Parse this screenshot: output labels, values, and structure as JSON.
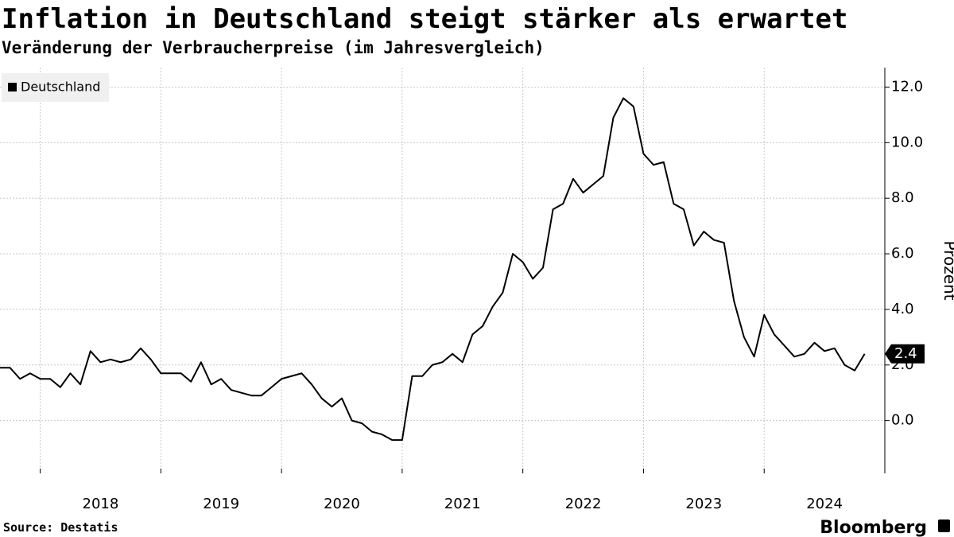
{
  "chart_data": {
    "type": "line",
    "title": "Inflation in Deutschland steigt stärker als erwartet",
    "subtitle": "Veränderung der Verbraucherpreise (im Jahresvergleich)",
    "y_label": "Prozent",
    "source": "Source: Destatis",
    "brand": "Bloomberg",
    "legend_position": "top-left",
    "grid": true,
    "x": [
      2017.667,
      2017.75,
      2017.833,
      2017.917,
      2018,
      2018.083,
      2018.167,
      2018.25,
      2018.333,
      2018.417,
      2018.5,
      2018.583,
      2018.667,
      2018.75,
      2018.833,
      2018.917,
      2019,
      2019.083,
      2019.167,
      2019.25,
      2019.333,
      2019.417,
      2019.5,
      2019.583,
      2019.667,
      2019.75,
      2019.833,
      2019.917,
      2020,
      2020.083,
      2020.167,
      2020.25,
      2020.333,
      2020.417,
      2020.5,
      2020.583,
      2020.667,
      2020.75,
      2020.833,
      2020.917,
      2021,
      2021.083,
      2021.167,
      2021.25,
      2021.333,
      2021.417,
      2021.5,
      2021.583,
      2021.667,
      2021.75,
      2021.833,
      2021.917,
      2022,
      2022.083,
      2022.167,
      2022.25,
      2022.333,
      2022.417,
      2022.5,
      2022.583,
      2022.667,
      2022.75,
      2022.833,
      2022.917,
      2023,
      2023.083,
      2023.167,
      2023.25,
      2023.333,
      2023.417,
      2023.5,
      2023.583,
      2023.667,
      2023.75,
      2023.833,
      2023.917,
      2024,
      2024.083,
      2024.167,
      2024.25,
      2024.333,
      2024.417,
      2024.5,
      2024.583,
      2024.667,
      2024.75,
      2024.833
    ],
    "series": [
      {
        "name": "Deutschland",
        "color": "#000000",
        "values": [
          1.9,
          1.9,
          1.5,
          1.7,
          1.5,
          1.5,
          1.2,
          1.7,
          1.3,
          2.5,
          2.1,
          2.2,
          2.1,
          2.2,
          2.6,
          2.2,
          1.7,
          1.7,
          1.7,
          1.4,
          2.1,
          1.3,
          1.5,
          1.1,
          1.0,
          0.9,
          0.9,
          1.2,
          1.5,
          1.6,
          1.7,
          1.3,
          0.8,
          0.5,
          0.8,
          0.0,
          -0.1,
          -0.4,
          -0.5,
          -0.7,
          -0.7,
          1.6,
          1.6,
          2.0,
          2.1,
          2.4,
          2.1,
          3.1,
          3.4,
          4.1,
          4.6,
          6.0,
          5.7,
          5.1,
          5.5,
          7.6,
          7.8,
          8.7,
          8.2,
          8.5,
          8.8,
          10.9,
          11.6,
          11.3,
          9.6,
          9.2,
          9.3,
          7.8,
          7.6,
          6.3,
          6.8,
          6.5,
          6.4,
          4.3,
          3.0,
          2.3,
          3.8,
          3.1,
          2.7,
          2.3,
          2.4,
          2.8,
          2.5,
          2.6,
          2.0,
          1.8,
          2.4
        ]
      }
    ],
    "xlim": [
      2017.667,
      2025.0
    ],
    "xticks": [
      2018,
      2019,
      2020,
      2021,
      2022,
      2023,
      2024
    ],
    "ylim": [
      -1.9,
      12.7
    ],
    "yticks": [
      {
        "value": 0,
        "label": "0.0"
      },
      {
        "value": 2,
        "label": "2.0"
      },
      {
        "value": 4,
        "label": "4.0"
      },
      {
        "value": 6,
        "label": "6.0"
      },
      {
        "value": 8,
        "label": "8.0"
      },
      {
        "value": 10,
        "label": "10.0"
      },
      {
        "value": 12,
        "label": "12.0"
      }
    ]
  }
}
